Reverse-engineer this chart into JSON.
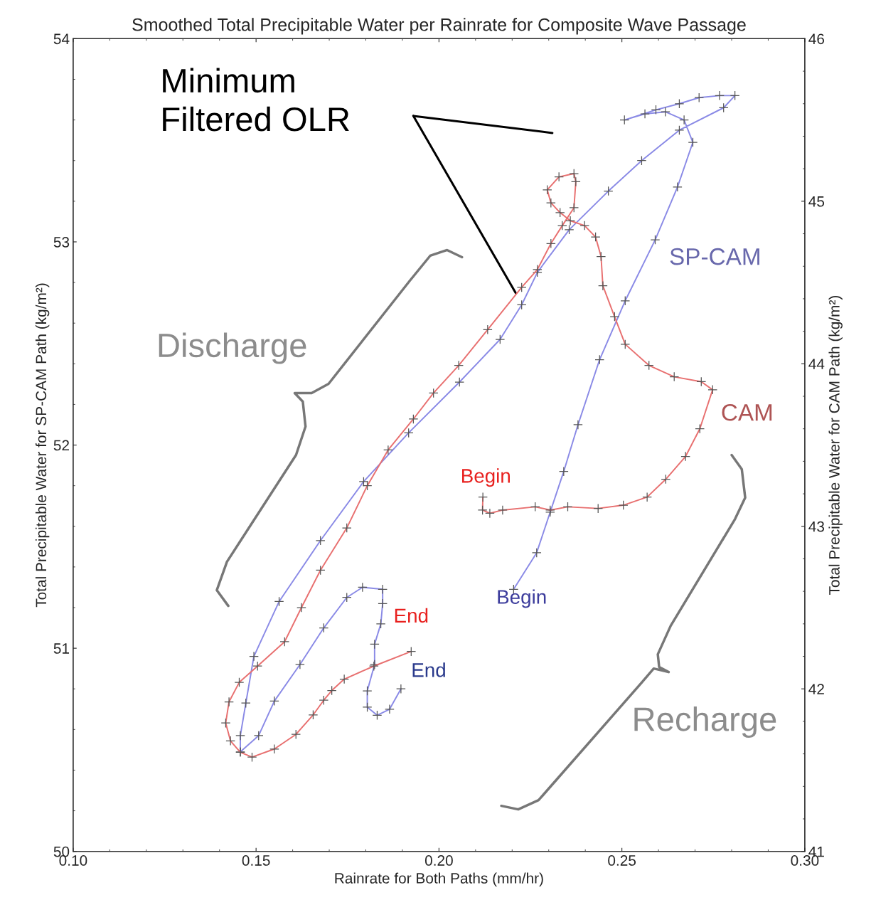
{
  "chart_data": {
    "type": "line",
    "title": "Smoothed Total Precipitable Water per Rainrate for Composite Wave Passage",
    "xlabel": "Rainrate for Both Paths (mm/hr)",
    "ylabel": "Total Precipitable Water for SP-CAM Path (kg/m²)",
    "y2label": "Total Precipitable Water for CAM Path (kg/m²)",
    "marker": "cross",
    "grid": false,
    "legend": false,
    "xlim": [
      0.1,
      0.3
    ],
    "xticks": [
      {
        "value": 0.1,
        "label": "0.10"
      },
      {
        "value": 0.15,
        "label": "0.15"
      },
      {
        "value": 0.2,
        "label": "0.20"
      },
      {
        "value": 0.25,
        "label": "0.25"
      },
      {
        "value": 0.3,
        "label": "0.30"
      }
    ],
    "ylim": [
      50,
      54
    ],
    "yticks": [
      50,
      51,
      52,
      53,
      54
    ],
    "y2lim": [
      41,
      46
    ],
    "y2ticks": [
      41,
      42,
      43,
      44,
      45,
      46
    ],
    "series": [
      {
        "name": "SP-CAM",
        "color": "#8a8ae6",
        "x": [
          0.2204,
          0.2267,
          0.2304,
          0.2341,
          0.238,
          0.2439,
          0.2509,
          0.2591,
          0.2652,
          0.2694,
          0.267,
          0.2619,
          0.2563,
          0.2507,
          0.2593,
          0.2657,
          0.2711,
          0.2767,
          0.2809,
          0.2778,
          0.2657,
          0.2554,
          0.2463,
          0.2356,
          0.2269,
          0.2226,
          0.2167,
          0.2056,
          0.1917,
          0.1794,
          0.1676,
          0.1563,
          0.1494,
          0.1472,
          0.1457,
          0.1457,
          0.1507,
          0.155,
          0.162,
          0.1685,
          0.1748,
          0.1791,
          0.1846,
          0.1846,
          0.1841,
          0.1824,
          0.1824,
          0.1804,
          0.1804,
          0.1831,
          0.1865,
          0.1896
        ],
        "values": [
          51.29,
          51.47,
          51.67,
          51.87,
          52.1,
          52.42,
          52.71,
          53.01,
          53.27,
          53.49,
          53.6,
          53.64,
          53.63,
          53.6,
          53.65,
          53.68,
          53.71,
          53.72,
          53.72,
          53.66,
          53.55,
          53.4,
          53.25,
          53.06,
          52.85,
          52.69,
          52.52,
          52.31,
          52.06,
          51.82,
          51.53,
          51.23,
          50.96,
          50.73,
          50.57,
          50.49,
          50.57,
          50.74,
          50.92,
          51.1,
          51.25,
          51.3,
          51.29,
          51.22,
          51.12,
          51.02,
          50.92,
          50.79,
          50.71,
          50.67,
          50.7,
          50.8
        ]
      },
      {
        "name": "CAM",
        "color": "#e87070",
        "axis": "y2",
        "x": [
          0.212,
          0.2119,
          0.2139,
          0.2174,
          0.2263,
          0.2304,
          0.2352,
          0.2435,
          0.2504,
          0.2569,
          0.262,
          0.2674,
          0.2713,
          0.2748,
          0.2717,
          0.2643,
          0.2574,
          0.2509,
          0.248,
          0.2448,
          0.2443,
          0.2428,
          0.2398,
          0.2359,
          0.2331,
          0.2306,
          0.2296,
          0.2328,
          0.2369,
          0.2374,
          0.2369,
          0.2337,
          0.2306,
          0.2269,
          0.2226,
          0.2133,
          0.2054,
          0.1985,
          0.193,
          0.1861,
          0.1804,
          0.1748,
          0.1676,
          0.1624,
          0.1578,
          0.1504,
          0.1454,
          0.1426,
          0.1417,
          0.143,
          0.1457,
          0.1489,
          0.155,
          0.1609,
          0.1656,
          0.1685,
          0.1707,
          0.1741,
          0.1822,
          0.1924
        ],
        "values": [
          43.18,
          43.1,
          43.08,
          43.1,
          43.12,
          43.1,
          43.12,
          43.11,
          43.13,
          43.18,
          43.29,
          43.43,
          43.6,
          43.84,
          43.89,
          43.92,
          43.99,
          44.12,
          44.29,
          44.48,
          44.66,
          44.78,
          44.85,
          44.88,
          44.93,
          44.99,
          45.07,
          45.15,
          45.17,
          45.12,
          44.96,
          44.85,
          44.74,
          44.58,
          44.47,
          44.21,
          43.99,
          43.82,
          43.66,
          43.47,
          43.25,
          42.99,
          42.73,
          42.5,
          42.29,
          42.14,
          42.04,
          41.92,
          41.79,
          41.68,
          41.61,
          41.58,
          41.63,
          41.72,
          41.84,
          41.93,
          41.99,
          42.06,
          42.14,
          42.23
        ]
      }
    ],
    "annotations": [
      "Minimum\nFiltered OLR",
      "Discharge",
      "Recharge",
      "Begin",
      "End",
      "Begin",
      "End"
    ]
  }
}
